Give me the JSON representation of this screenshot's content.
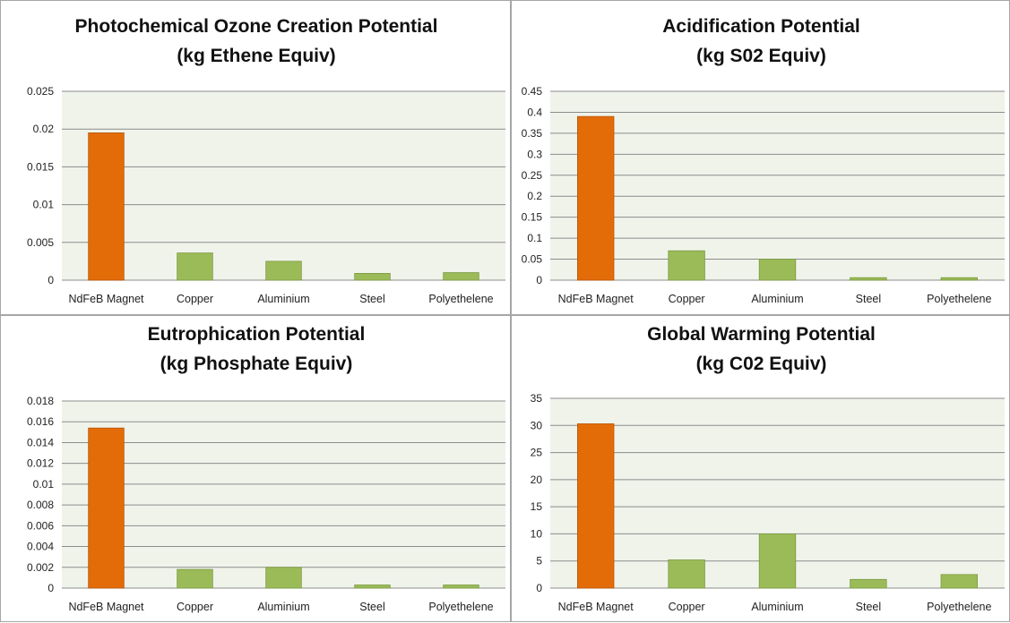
{
  "chart_data": [
    {
      "type": "bar",
      "title": "Photochemical Ozone Creation Potential",
      "subtitle": "(kg Ethene Equiv)",
      "categories": [
        "NdFeB Magnet",
        "Copper",
        "Aluminium",
        "Steel",
        "Polyethelene"
      ],
      "values": [
        0.0195,
        0.0036,
        0.0025,
        0.0009,
        0.001
      ],
      "ylim": [
        0,
        0.025
      ],
      "yticks": [
        "0",
        "0.005",
        "0.01",
        "0.015",
        "0.02",
        "0.025"
      ],
      "bar_colors": [
        "#e36c09",
        "#9bbb59",
        "#9bbb59",
        "#9bbb59",
        "#9bbb59"
      ],
      "grid": true,
      "legend": "none"
    },
    {
      "type": "bar",
      "title": "Acidification Potential",
      "subtitle": "(kg S02 Equiv)",
      "categories": [
        "NdFeB Magnet",
        "Copper",
        "Aluminium",
        "Steel",
        "Polyethelene"
      ],
      "values": [
        0.39,
        0.07,
        0.05,
        0.006,
        0.006
      ],
      "ylim": [
        0,
        0.45
      ],
      "yticks": [
        "0",
        "0.05",
        "0.1",
        "0.15",
        "0.2",
        "0.25",
        "0.3",
        "0.35",
        "0.4",
        "0.45"
      ],
      "bar_colors": [
        "#e36c09",
        "#9bbb59",
        "#9bbb59",
        "#9bbb59",
        "#9bbb59"
      ],
      "grid": true,
      "legend": "none"
    },
    {
      "type": "bar",
      "title": "Eutrophication Potential",
      "subtitle": "(kg Phosphate Equiv)",
      "categories": [
        "NdFeB Magnet",
        "Copper",
        "Aluminium",
        "Steel",
        "Polyethelene"
      ],
      "values": [
        0.0154,
        0.0018,
        0.002,
        0.0003,
        0.0003
      ],
      "ylim": [
        0,
        0.018
      ],
      "yticks": [
        "0",
        "0.002",
        "0.004",
        "0.006",
        "0.008",
        "0.01",
        "0.012",
        "0.014",
        "0.016",
        "0.018"
      ],
      "bar_colors": [
        "#e36c09",
        "#9bbb59",
        "#9bbb59",
        "#9bbb59",
        "#9bbb59"
      ],
      "grid": true,
      "legend": "none"
    },
    {
      "type": "bar",
      "title": "Global Warming Potential",
      "subtitle": "(kg C02 Equiv)",
      "categories": [
        "NdFeB Magnet",
        "Copper",
        "Aluminium",
        "Steel",
        "Polyethelene"
      ],
      "values": [
        30.3,
        5.2,
        10,
        1.6,
        2.5
      ],
      "ylim": [
        0,
        35
      ],
      "yticks": [
        "0",
        "5",
        "10",
        "15",
        "20",
        "25",
        "30",
        "35"
      ],
      "bar_colors": [
        "#e36c09",
        "#9bbb59",
        "#9bbb59",
        "#9bbb59",
        "#9bbb59"
      ],
      "grid": true,
      "legend": "none"
    }
  ],
  "colors": {
    "plot_background": "#f0f3ea",
    "gridline": "#8c8c8c",
    "panel_border": "#a6a6a6"
  }
}
